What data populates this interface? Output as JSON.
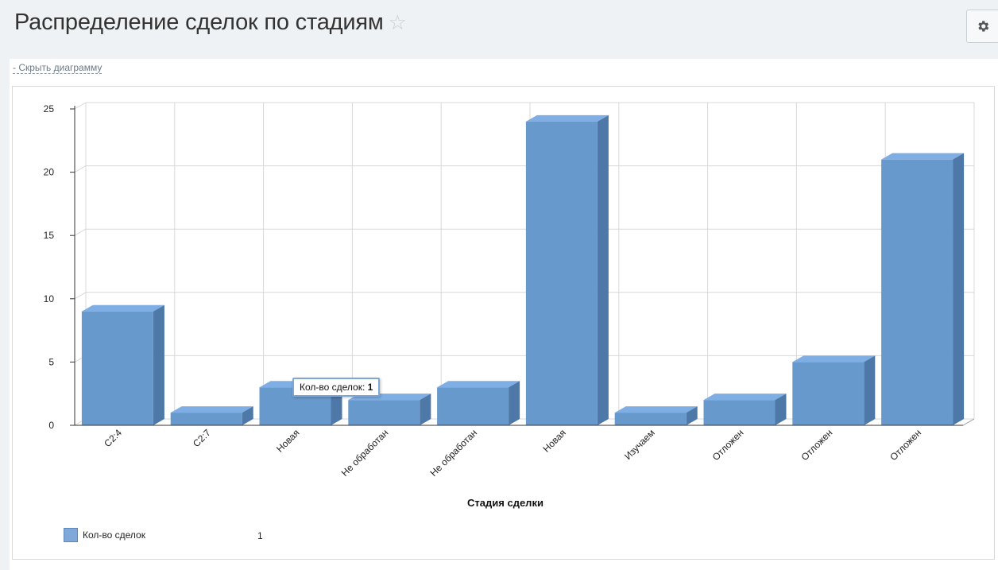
{
  "page": {
    "title": "Распределение сделок по стадиям",
    "hide_chart_label": "- Скрыть диаграмму"
  },
  "colors": {
    "bar_front": "#6899cc",
    "bar_top": "#7eaee3",
    "bar_side": "#4d78a8",
    "grid": "#d8d8d8"
  },
  "tooltip": {
    "label": "Кол-во сделок:",
    "value": "1"
  },
  "legend": {
    "label": "Кол-во сделок",
    "value": "1"
  },
  "chart_data": {
    "type": "bar",
    "style": "3d-column",
    "categories": [
      "C2:4",
      "C2:7",
      "Новая",
      "Не обработан",
      "Не обработан",
      "Новая",
      "Изучаем",
      "Отложен",
      "Отложен",
      "Отложен"
    ],
    "series": [
      {
        "name": "Кол-во сделок",
        "values": [
          9,
          1,
          3,
          2,
          3,
          24,
          1,
          2,
          5,
          21
        ]
      }
    ],
    "xlabel": "Стадия сделки",
    "ylabel": "",
    "ylim": [
      0,
      25
    ],
    "yticks": [
      0,
      5,
      10,
      15,
      20,
      25
    ],
    "grid": true,
    "legend_position": "bottom-left"
  }
}
